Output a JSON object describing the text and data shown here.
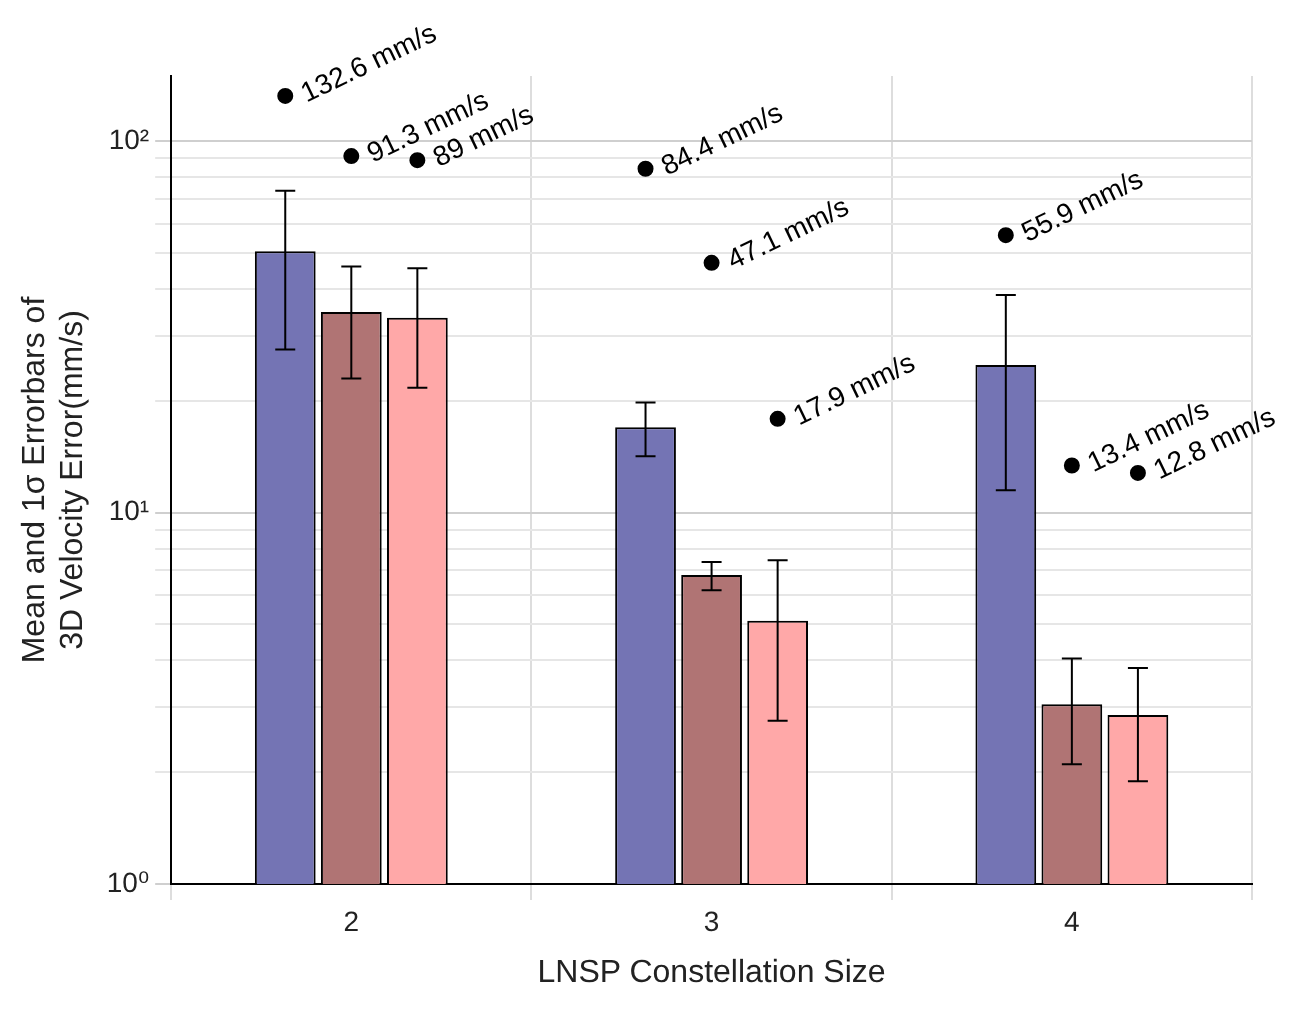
{
  "chart_data": {
    "type": "bar",
    "xlabel": "LNSP Constellation Size",
    "ylabel": "Mean and 1σ Errorbars of\n3D Velocity Error(mm/s)",
    "categories": [
      "2",
      "3",
      "4"
    ],
    "series": [
      {
        "color": "#7474b4",
        "values": [
          50.6,
          17,
          25
        ],
        "errors": [
          [
            27.5,
            73.6
          ],
          [
            14.2,
            19.8
          ],
          [
            11.5,
            38.6
          ]
        ]
      },
      {
        "color": "#b07474",
        "values": [
          34.7,
          6.8,
          3.05
        ],
        "errors": [
          [
            23,
            46
          ],
          [
            6.18,
            7.37
          ],
          [
            2.1,
            4.05
          ]
        ]
      },
      {
        "color": "#ffa8a8",
        "values": [
          33.5,
          5.12,
          2.85
        ],
        "errors": [
          [
            21.7,
            45.5
          ],
          [
            2.75,
            7.45
          ],
          [
            1.89,
            3.82
          ]
        ]
      },
      {
        "type": "scatter",
        "color": "#000000",
        "x": [
          "2",
          "3",
          "4"
        ],
        "values": [
          132.6,
          84.4,
          55.9
        ],
        "value_labels": [
          "132.6 mm/s",
          "84.4 mm/s",
          "55.9 mm/s"
        ]
      },
      {
        "type": "scatter",
        "color": "#000000",
        "x": [
          "2",
          "3",
          "4"
        ],
        "values": [
          91.3,
          47.1,
          13.4
        ],
        "value_labels": [
          "91.3 mm/s",
          "47.1 mm/s",
          "13.4 mm/s"
        ]
      },
      {
        "type": "scatter",
        "color": "#000000",
        "x": [
          "2",
          "3",
          "4"
        ],
        "values": [
          89,
          17.9,
          12.8
        ],
        "value_labels": [
          "89 mm/s",
          "17.9 mm/s",
          "12.8 mm/s"
        ]
      }
    ],
    "log": "y",
    "ylim": [
      1,
      150
    ],
    "yticks": [
      {
        "value": 1,
        "label": "10⁰"
      },
      {
        "value": 2,
        "label": null
      },
      {
        "value": 3,
        "label": null
      },
      {
        "value": 4,
        "label": null
      },
      {
        "value": 5,
        "label": null
      },
      {
        "value": 6,
        "label": null
      },
      {
        "value": 7,
        "label": null
      },
      {
        "value": 8,
        "label": null
      },
      {
        "value": 9,
        "label": null
      },
      {
        "value": 10,
        "label": "10¹"
      },
      {
        "value": 20,
        "label": null
      },
      {
        "value": 30,
        "label": null
      },
      {
        "value": 40,
        "label": null
      },
      {
        "value": 50,
        "label": null
      },
      {
        "value": 60,
        "label": null
      },
      {
        "value": 70,
        "label": null
      },
      {
        "value": 80,
        "label": null
      },
      {
        "value": 90,
        "label": null
      },
      {
        "value": 100,
        "label": "10²"
      }
    ],
    "grid": true,
    "legend": false,
    "marker": "circle"
  }
}
